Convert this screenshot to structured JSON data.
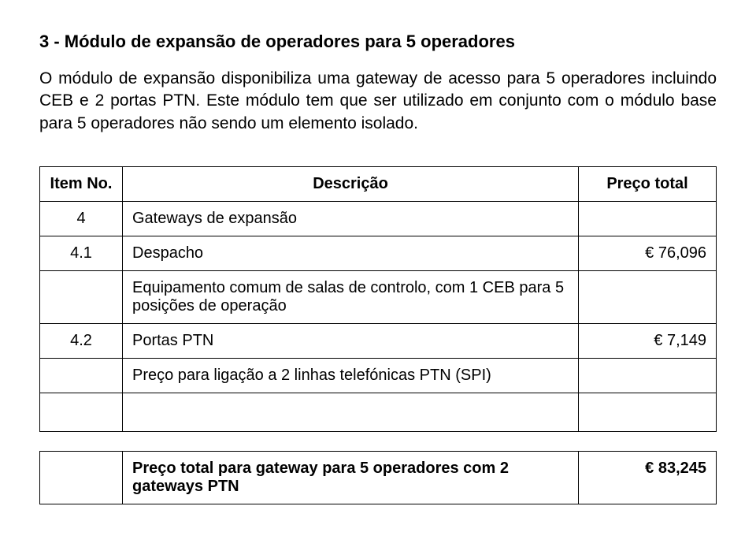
{
  "title": "3 - Módulo de expansão de operadores para 5 operadores",
  "paragraph": "O módulo de expansão disponibiliza uma gateway de acesso para 5 operadores incluindo CEB e 2 portas PTN. Este módulo tem que ser utilizado em conjunto com o módulo base para 5 operadores não sendo um elemento isolado.",
  "table": {
    "headers": {
      "item_no": "Item No.",
      "desc": "Descrição",
      "price": "Preço total"
    },
    "rows": [
      {
        "no": "4",
        "desc": "Gateways de expansão",
        "price": ""
      },
      {
        "no": "4.1",
        "desc": "Despacho",
        "price": "€ 76,096"
      },
      {
        "no": "",
        "desc": "Equipamento comum de salas de controlo, com 1 CEB para 5 posições de operação",
        "price": ""
      },
      {
        "no": "4.2",
        "desc": "Portas PTN",
        "price": "€ 7,149"
      },
      {
        "no": "",
        "desc": "Preço para ligação a 2 linhas telefónicas PTN (SPI)",
        "price": ""
      }
    ],
    "total": {
      "desc": "Preço total para gateway para 5 operadores com 2 gateways PTN",
      "price": "€ 83,245"
    }
  }
}
